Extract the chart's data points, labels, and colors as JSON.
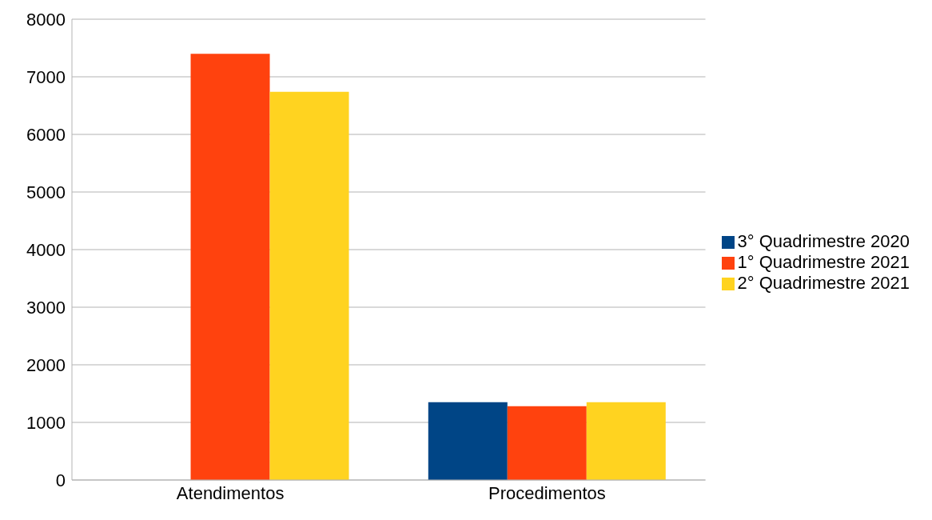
{
  "chart_data": {
    "type": "bar",
    "categories": [
      "Atendimentos",
      "Procedimentos"
    ],
    "series": [
      {
        "name": "3° Quadrimestre 2020",
        "color": "#004586",
        "values": [
          null,
          1350
        ]
      },
      {
        "name": "1° Quadrimestre 2021",
        "color": "#ff420e",
        "values": [
          7400,
          1280
        ]
      },
      {
        "name": "2° Quadrimestre 2021",
        "color": "#ffd320",
        "values": [
          6740,
          1350
        ]
      }
    ],
    "ylim": [
      0,
      8000
    ],
    "yticks": [
      0,
      1000,
      2000,
      3000,
      4000,
      5000,
      6000,
      7000,
      8000
    ],
    "grid": "y",
    "legend": "right"
  }
}
